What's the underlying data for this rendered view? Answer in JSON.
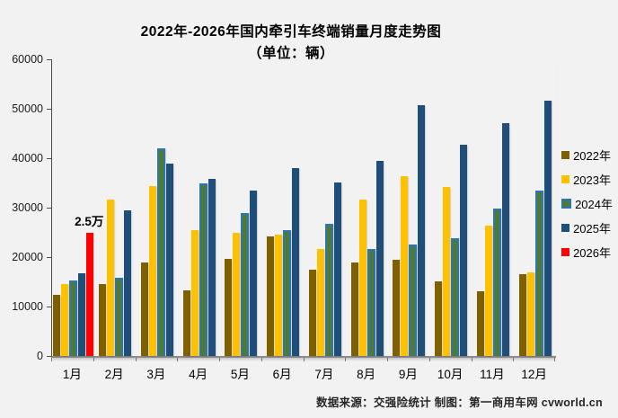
{
  "title": {
    "line1": "2022年-2026年国内牵引车终端销量月度走势图",
    "line2": "（单位：辆）"
  },
  "footer": {
    "credit": "数据来源：交强险统计  制图：第一商用车网 cvworld.cn"
  },
  "chart_data": {
    "type": "bar",
    "title": "2022年-2026年国内牵引车终端销量月度走势图",
    "subtitle": "（单位：辆）",
    "categories": [
      "1月",
      "2月",
      "3月",
      "4月",
      "5月",
      "6月",
      "7月",
      "8月",
      "9月",
      "10月",
      "11月",
      "12月"
    ],
    "series": [
      {
        "name": "2022年",
        "color": "#7F6000",
        "values": [
          12400,
          14600,
          18900,
          13200,
          19600,
          24200,
          17500,
          18900,
          19400,
          15100,
          13100,
          16600
        ]
      },
      {
        "name": "2023年",
        "color": "#FFC000",
        "values": [
          14500,
          31600,
          34400,
          25400,
          24900,
          24600,
          21700,
          31600,
          36300,
          34200,
          26300,
          16900
        ]
      },
      {
        "name": "2024年",
        "color": "#4E7B31",
        "border_color": "#2E75B6",
        "values": [
          15200,
          15900,
          42000,
          34900,
          29000,
          25500,
          26700,
          21600,
          22600,
          23900,
          29800,
          33500
        ]
      },
      {
        "name": "2025年",
        "color": "#1F4E79",
        "values": [
          16800,
          29500,
          39000,
          35800,
          33400,
          38000,
          35100,
          39500,
          50700,
          42700,
          47100,
          51600
        ]
      },
      {
        "name": "2026年",
        "color": "#FF0000",
        "values": [
          25000,
          null,
          null,
          null,
          null,
          null,
          null,
          null,
          null,
          null,
          null,
          null
        ],
        "labels": [
          "2.5万",
          null,
          null,
          null,
          null,
          null,
          null,
          null,
          null,
          null,
          null,
          null
        ]
      }
    ],
    "ylim": [
      0,
      60000
    ],
    "yticks": [
      0,
      10000,
      20000,
      30000,
      40000,
      50000,
      60000
    ],
    "grid": false,
    "legend_position": "right",
    "xlabel": "",
    "ylabel": ""
  }
}
